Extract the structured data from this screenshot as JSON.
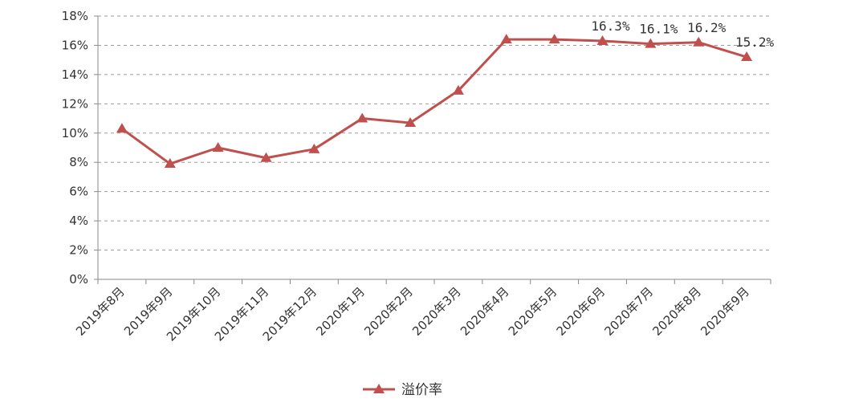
{
  "colors": {
    "series": "#c0504d",
    "grid": "#9a9a9a",
    "axis": "#888888",
    "text": "#333333"
  },
  "chart_data": {
    "type": "line",
    "categories": [
      "2019年8月",
      "2019年9月",
      "2019年10月",
      "2019年11月",
      "2019年12月",
      "2020年1月",
      "2020年2月",
      "2020年3月",
      "2020年4月",
      "2020年5月",
      "2020年6月",
      "2020年7月",
      "2020年8月",
      "2020年9月"
    ],
    "series": [
      {
        "name": "溢价率",
        "values": [
          10.3,
          7.9,
          9.0,
          8.3,
          8.9,
          11.0,
          10.7,
          12.9,
          16.4,
          16.4,
          16.3,
          16.1,
          16.2,
          15.2
        ],
        "marker": "triangle"
      }
    ],
    "data_labels": [
      {
        "index": 10,
        "text": "16.3%"
      },
      {
        "index": 11,
        "text": "16.1%"
      },
      {
        "index": 12,
        "text": "16.2%"
      },
      {
        "index": 13,
        "text": "15.2%"
      }
    ],
    "y_ticks": [
      "0%",
      "2%",
      "4%",
      "6%",
      "8%",
      "10%",
      "12%",
      "14%",
      "16%",
      "18%"
    ],
    "ylim": [
      0,
      18
    ],
    "y_unit": "%",
    "grid": "horizontal-dashed",
    "legend": "bottom-center"
  }
}
